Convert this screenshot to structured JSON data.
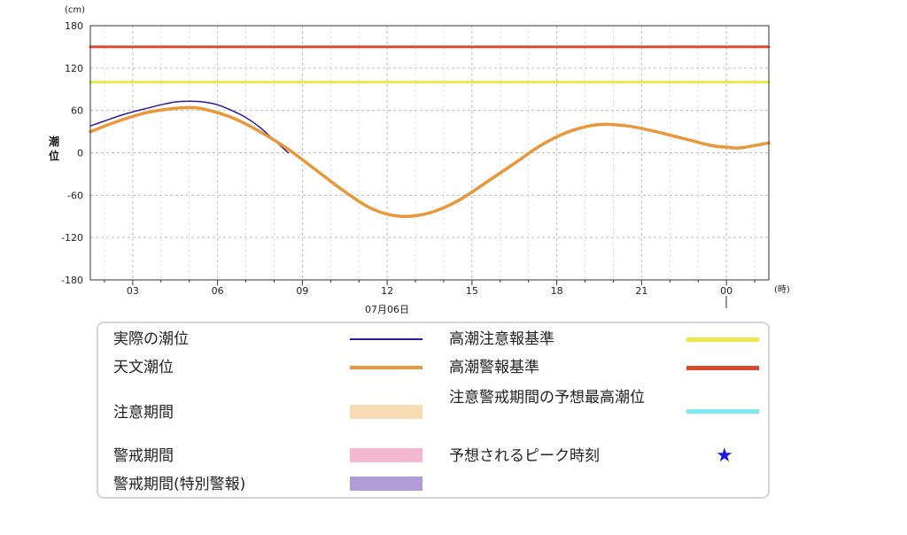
{
  "chart_data": {
    "type": "line",
    "y_unit": "(cm)",
    "x_unit": "(時)",
    "ylabel": "潮位",
    "date_label": "07月06日",
    "ylim": [
      -180,
      180
    ],
    "yticks": [
      180,
      120,
      60,
      0,
      -60,
      -120,
      -180
    ],
    "xlim_hours": [
      1.5,
      25.5
    ],
    "xticks": [
      {
        "h": 3,
        "label": "03"
      },
      {
        "h": 6,
        "label": "06"
      },
      {
        "h": 9,
        "label": "09"
      },
      {
        "h": 12,
        "label": "12"
      },
      {
        "h": 15,
        "label": "15"
      },
      {
        "h": 18,
        "label": "18"
      },
      {
        "h": 21,
        "label": "21"
      },
      {
        "h": 24,
        "label": "00"
      }
    ],
    "grid": true,
    "series": [
      {
        "name": "実際の潮位",
        "color": "#2b1a9a",
        "x": [
          1.5,
          2.0,
          2.5,
          3.0,
          3.5,
          4.0,
          4.5,
          5.0,
          5.5,
          6.0,
          6.5,
          7.0,
          7.5,
          8.0,
          8.5
        ],
        "y": [
          38,
          45,
          52,
          58,
          63,
          68,
          72,
          73,
          72,
          68,
          60,
          50,
          36,
          18,
          0
        ]
      },
      {
        "name": "天文潮位",
        "color": "#e8973a",
        "x": [
          1.5,
          2.5,
          3.5,
          4.5,
          5.0,
          5.5,
          6.5,
          7.5,
          8.5,
          9.5,
          10.5,
          11.5,
          12.5,
          13.5,
          14.5,
          15.5,
          16.5,
          17.5,
          18.5,
          19.5,
          20.5,
          21.5,
          22.5,
          23.5,
          24.0,
          24.5,
          25.5
        ],
        "y": [
          30,
          45,
          57,
          63,
          64,
          62,
          50,
          30,
          5,
          -25,
          -55,
          -80,
          -90,
          -85,
          -68,
          -42,
          -15,
          12,
          31,
          40,
          38,
          30,
          20,
          10,
          8,
          7,
          14
        ]
      },
      {
        "name": "高潮注意報基準",
        "color": "#e8e84a",
        "x": [
          1.5,
          25.5
        ],
        "y": [
          100,
          100
        ]
      },
      {
        "name": "高潮警報基準",
        "color": "#d84a2e",
        "x": [
          1.5,
          25.5
        ],
        "y": [
          150,
          150
        ]
      }
    ]
  },
  "legend": {
    "actual": {
      "label": "実際の潮位",
      "color": "#2b1a9a"
    },
    "astro": {
      "label": "天文潮位",
      "color": "#e8973a"
    },
    "caution_period": {
      "label": "注意期間",
      "color": "#f7dcb4"
    },
    "warning_period": {
      "label": "警戒期間",
      "color": "#f3b7cf"
    },
    "special_period": {
      "label": "警戒期間(特別警報)",
      "color": "#b09ad8"
    },
    "caution_level": {
      "label": "高潮注意報基準",
      "color": "#e8e84a"
    },
    "warning_level": {
      "label": "高潮警報基準",
      "color": "#d84a2e"
    },
    "forecast_peak_level": {
      "label": "注意警戒期間の予想最高潮位",
      "color": "#7fe9ef"
    },
    "peak_time": {
      "label": "予想されるピーク時刻",
      "color": "#1a1ae0",
      "icon": "star-icon"
    }
  }
}
